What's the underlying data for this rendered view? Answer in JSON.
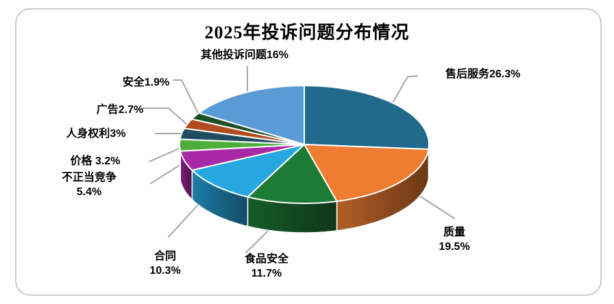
{
  "chart_data": {
    "type": "pie",
    "is_3d": true,
    "title": "2025年投诉问题分布情况",
    "legend_position": "none",
    "leader_line_color": "#A6A6A6",
    "slices": [
      {
        "name": "售后服务",
        "value": 26.3,
        "color": "#216A8C",
        "label_line1": "售后服务26.3%",
        "label_line2": ""
      },
      {
        "name": "质量",
        "value": 19.5,
        "color": "#EE7D31",
        "label_line1": "质量",
        "label_line2": "19.5%"
      },
      {
        "name": "食品安全",
        "value": 11.7,
        "color": "#1E7B35",
        "label_line1": "食品安全",
        "label_line2": "11.7%"
      },
      {
        "name": "合同",
        "value": 10.3,
        "color": "#27A7DF",
        "label_line1": "合同",
        "label_line2": "10.3%"
      },
      {
        "name": "不正当竞争",
        "value": 5.4,
        "color": "#A729A5",
        "label_line1": "不正当竞争",
        "label_line2": "5.4%"
      },
      {
        "name": "价格",
        "value": 3.2,
        "color": "#4FAE3B",
        "label_line1": "价格 3.2%",
        "label_line2": ""
      },
      {
        "name": "人身权利",
        "value": 3,
        "color": "#1F4D5F",
        "label_line1": "人身权利3%",
        "label_line2": ""
      },
      {
        "name": "广告",
        "value": 2.7,
        "color": "#B04C1F",
        "label_line1": "广告2.7%",
        "label_line2": ""
      },
      {
        "name": "安全",
        "value": 1.9,
        "color": "#1C4E27",
        "label_line1": "安全1.9%",
        "label_line2": ""
      },
      {
        "name": "其他投诉问题",
        "value": 16,
        "color": "#5B9BD5",
        "label_line1": "其他投诉问题16%",
        "label_line2": ""
      }
    ]
  }
}
